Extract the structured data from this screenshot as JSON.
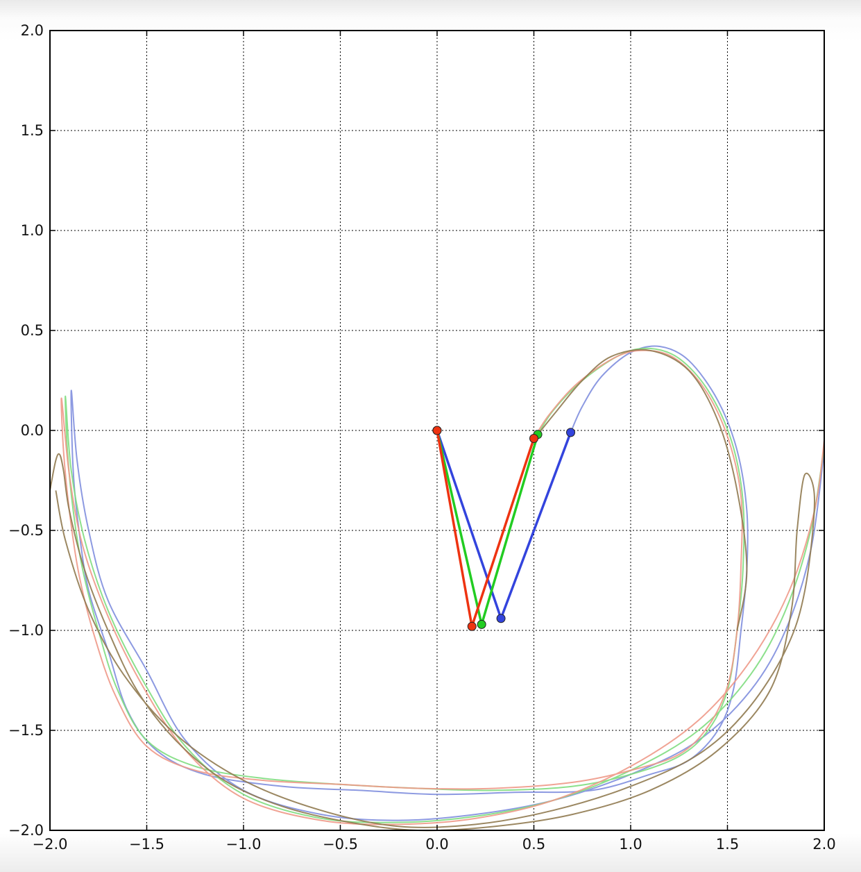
{
  "chart_data": {
    "type": "line",
    "title": "",
    "xlabel": "",
    "ylabel": "",
    "xlim": [
      -2.0,
      2.0
    ],
    "ylim": [
      -2.0,
      2.0
    ],
    "grid": true,
    "x_ticks": [
      -2.0,
      -1.5,
      -1.0,
      -0.5,
      0.0,
      0.5,
      1.0,
      1.5,
      2.0
    ],
    "y_ticks": [
      -2.0,
      -1.5,
      -1.0,
      -0.5,
      0.0,
      0.5,
      1.0,
      1.5,
      2.0
    ],
    "x_tick_labels": [
      "−2.0",
      "−1.5",
      "−1.0",
      "−0.5",
      "0.0",
      "0.5",
      "1.0",
      "1.5",
      "2.0"
    ],
    "y_tick_labels": [
      "−2.0",
      "−1.5",
      "−1.0",
      "−0.5",
      "0.0",
      "0.5",
      "1.0",
      "1.5",
      "2.0"
    ],
    "pendulums": [
      {
        "color": "#3344dd",
        "points": [
          [
            0.0,
            0.0
          ],
          [
            0.33,
            -0.94
          ],
          [
            0.69,
            -0.01
          ]
        ]
      },
      {
        "color": "#22cc22",
        "points": [
          [
            0.0,
            0.0
          ],
          [
            0.23,
            -0.97
          ],
          [
            0.52,
            -0.02
          ]
        ]
      },
      {
        "color": "#ee3311",
        "points": [
          [
            0.0,
            0.0
          ],
          [
            0.18,
            -0.98
          ],
          [
            0.5,
            -0.04
          ]
        ]
      }
    ],
    "traces": [
      {
        "color": "#7f8ede",
        "points": [
          [
            0.69,
            -0.01
          ],
          [
            0.75,
            0.12
          ],
          [
            0.85,
            0.27
          ],
          [
            1.0,
            0.39
          ],
          [
            1.15,
            0.42
          ],
          [
            1.3,
            0.35
          ],
          [
            1.45,
            0.15
          ],
          [
            1.55,
            -0.1
          ],
          [
            1.6,
            -0.4
          ],
          [
            1.6,
            -0.7
          ],
          [
            1.57,
            -1.0
          ],
          [
            1.53,
            -1.3
          ],
          [
            1.45,
            -1.5
          ],
          [
            1.3,
            -1.65
          ],
          [
            1.1,
            -1.72
          ],
          [
            0.8,
            -1.8
          ],
          [
            0.4,
            -1.81
          ],
          [
            0.0,
            -1.82
          ],
          [
            -0.4,
            -1.8
          ],
          [
            -0.8,
            -1.78
          ],
          [
            -1.2,
            -1.72
          ],
          [
            -1.45,
            -1.6
          ],
          [
            -1.6,
            -1.4
          ],
          [
            -1.7,
            -1.1
          ],
          [
            -1.8,
            -0.8
          ],
          [
            -1.85,
            -0.5
          ],
          [
            -1.88,
            -0.2
          ],
          [
            -1.89,
            0.2
          ],
          [
            -1.86,
            -0.15
          ],
          [
            -1.8,
            -0.5
          ],
          [
            -1.7,
            -0.85
          ],
          [
            -1.5,
            -1.2
          ],
          [
            -1.3,
            -1.55
          ],
          [
            -1.0,
            -1.8
          ],
          [
            -0.6,
            -1.92
          ],
          [
            -0.2,
            -1.95
          ],
          [
            0.2,
            -1.92
          ],
          [
            0.6,
            -1.85
          ],
          [
            1.0,
            -1.72
          ],
          [
            1.35,
            -1.55
          ],
          [
            1.62,
            -1.3
          ],
          [
            1.8,
            -1.0
          ],
          [
            1.93,
            -0.6
          ],
          [
            2.0,
            -0.1
          ]
        ]
      },
      {
        "color": "#80dd80",
        "points": [
          [
            0.52,
            -0.02
          ],
          [
            0.6,
            0.1
          ],
          [
            0.75,
            0.25
          ],
          [
            0.95,
            0.38
          ],
          [
            1.1,
            0.41
          ],
          [
            1.25,
            0.36
          ],
          [
            1.4,
            0.2
          ],
          [
            1.52,
            -0.05
          ],
          [
            1.58,
            -0.35
          ],
          [
            1.58,
            -0.7
          ],
          [
            1.55,
            -1.0
          ],
          [
            1.5,
            -1.3
          ],
          [
            1.4,
            -1.5
          ],
          [
            1.25,
            -1.63
          ],
          [
            1.0,
            -1.72
          ],
          [
            0.7,
            -1.78
          ],
          [
            0.3,
            -1.8
          ],
          [
            -0.1,
            -1.79
          ],
          [
            -0.5,
            -1.77
          ],
          [
            -0.9,
            -1.74
          ],
          [
            -1.25,
            -1.68
          ],
          [
            -1.5,
            -1.55
          ],
          [
            -1.65,
            -1.3
          ],
          [
            -1.75,
            -1.0
          ],
          [
            -1.83,
            -0.7
          ],
          [
            -1.88,
            -0.4
          ],
          [
            -1.91,
            -0.1
          ],
          [
            -1.92,
            0.17
          ],
          [
            -1.89,
            -0.2
          ],
          [
            -1.82,
            -0.55
          ],
          [
            -1.7,
            -0.9
          ],
          [
            -1.52,
            -1.25
          ],
          [
            -1.3,
            -1.58
          ],
          [
            -1.0,
            -1.82
          ],
          [
            -0.6,
            -1.94
          ],
          [
            -0.2,
            -1.96
          ],
          [
            0.2,
            -1.93
          ],
          [
            0.6,
            -1.85
          ],
          [
            1.0,
            -1.7
          ],
          [
            1.35,
            -1.5
          ],
          [
            1.62,
            -1.22
          ],
          [
            1.8,
            -0.9
          ],
          [
            1.93,
            -0.5
          ],
          [
            2.0,
            -0.08
          ]
        ]
      },
      {
        "color": "#ee9988",
        "points": [
          [
            0.5,
            -0.04
          ],
          [
            0.58,
            0.08
          ],
          [
            0.73,
            0.24
          ],
          [
            0.93,
            0.37
          ],
          [
            1.08,
            0.4
          ],
          [
            1.23,
            0.36
          ],
          [
            1.38,
            0.21
          ],
          [
            1.5,
            -0.03
          ],
          [
            1.57,
            -0.33
          ],
          [
            1.57,
            -0.68
          ],
          [
            1.55,
            -1.0
          ],
          [
            1.5,
            -1.28
          ],
          [
            1.4,
            -1.48
          ],
          [
            1.25,
            -1.62
          ],
          [
            1.0,
            -1.7
          ],
          [
            0.7,
            -1.76
          ],
          [
            0.3,
            -1.79
          ],
          [
            -0.1,
            -1.79
          ],
          [
            -0.5,
            -1.77
          ],
          [
            -0.9,
            -1.75
          ],
          [
            -1.25,
            -1.7
          ],
          [
            -1.5,
            -1.58
          ],
          [
            -1.66,
            -1.33
          ],
          [
            -1.77,
            -1.03
          ],
          [
            -1.85,
            -0.72
          ],
          [
            -1.9,
            -0.4
          ],
          [
            -1.93,
            -0.1
          ],
          [
            -1.94,
            0.16
          ],
          [
            -1.9,
            -0.22
          ],
          [
            -1.83,
            -0.58
          ],
          [
            -1.7,
            -0.93
          ],
          [
            -1.52,
            -1.28
          ],
          [
            -1.3,
            -1.6
          ],
          [
            -1.0,
            -1.84
          ],
          [
            -0.6,
            -1.95
          ],
          [
            -0.2,
            -1.97
          ],
          [
            0.2,
            -1.94
          ],
          [
            0.6,
            -1.85
          ],
          [
            1.0,
            -1.68
          ],
          [
            1.35,
            -1.45
          ],
          [
            1.62,
            -1.15
          ],
          [
            1.82,
            -0.8
          ],
          [
            1.95,
            -0.4
          ],
          [
            2.0,
            -0.05
          ]
        ]
      },
      {
        "color": "#907a50",
        "points": [
          [
            1.55,
            -1.0
          ],
          [
            1.6,
            -0.7
          ],
          [
            1.55,
            -0.3
          ],
          [
            1.45,
            0.05
          ],
          [
            1.3,
            0.3
          ],
          [
            1.1,
            0.4
          ],
          [
            0.9,
            0.37
          ],
          [
            0.75,
            0.25
          ],
          [
            0.62,
            0.1
          ],
          [
            0.52,
            -0.02
          ]
        ]
      },
      {
        "color": "#907a50",
        "points": [
          [
            -2.0,
            -0.3
          ],
          [
            -1.97,
            -0.15
          ],
          [
            -1.95,
            -0.12
          ],
          [
            -1.93,
            -0.2
          ],
          [
            -1.9,
            -0.4
          ],
          [
            -1.82,
            -0.7
          ],
          [
            -1.7,
            -1.0
          ],
          [
            -1.55,
            -1.3
          ],
          [
            -1.35,
            -1.55
          ],
          [
            -1.1,
            -1.75
          ],
          [
            -0.8,
            -1.88
          ],
          [
            -0.45,
            -1.96
          ],
          [
            -0.1,
            -2.0
          ],
          [
            0.3,
            -1.98
          ],
          [
            0.7,
            -1.92
          ],
          [
            1.1,
            -1.8
          ],
          [
            1.45,
            -1.6
          ],
          [
            1.72,
            -1.3
          ],
          [
            1.83,
            -0.9
          ],
          [
            1.86,
            -0.5
          ],
          [
            1.9,
            -0.22
          ],
          [
            1.95,
            -0.35
          ],
          [
            1.9,
            -0.8
          ],
          [
            1.8,
            -1.1
          ],
          [
            1.6,
            -1.4
          ],
          [
            1.35,
            -1.62
          ],
          [
            1.0,
            -1.78
          ],
          [
            0.6,
            -1.9
          ],
          [
            0.2,
            -1.97
          ],
          [
            -0.2,
            -1.98
          ],
          [
            -0.6,
            -1.9
          ],
          [
            -1.0,
            -1.75
          ],
          [
            -1.35,
            -1.52
          ],
          [
            -1.62,
            -1.22
          ],
          [
            -1.8,
            -0.9
          ],
          [
            -1.92,
            -0.55
          ],
          [
            -1.97,
            -0.3
          ]
        ]
      }
    ]
  }
}
